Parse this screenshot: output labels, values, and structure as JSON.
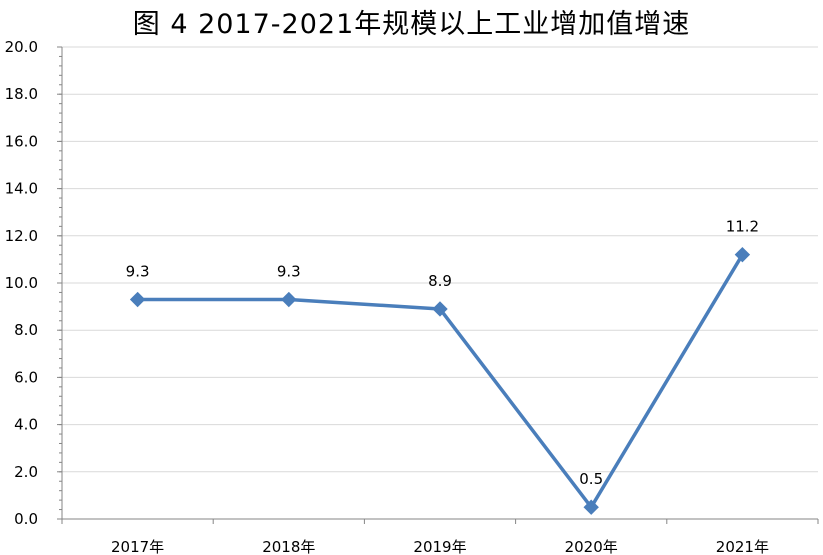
{
  "chart_data": {
    "type": "line",
    "title": "图 4 2017-2021年规模以上工业增加值增速",
    "categories": [
      "2017年",
      "2018年",
      "2019年",
      "2020年",
      "2021年"
    ],
    "series": [
      {
        "values": [
          9.3,
          9.3,
          8.9,
          0.5,
          11.2
        ],
        "labels": [
          "9.3",
          "9.3",
          "8.9",
          "0.5",
          "11.2"
        ]
      }
    ],
    "ylim": [
      0,
      20
    ],
    "yticks": [
      "0.0",
      "2.0",
      "4.0",
      "6.0",
      "8.0",
      "10.0",
      "12.0",
      "14.0",
      "16.0",
      "18.0",
      "20.0"
    ],
    "grid": true,
    "legend": "none",
    "line_color": "#4a7ebb",
    "grid_color": "#d9d9d9",
    "axis_color": "#868686"
  }
}
